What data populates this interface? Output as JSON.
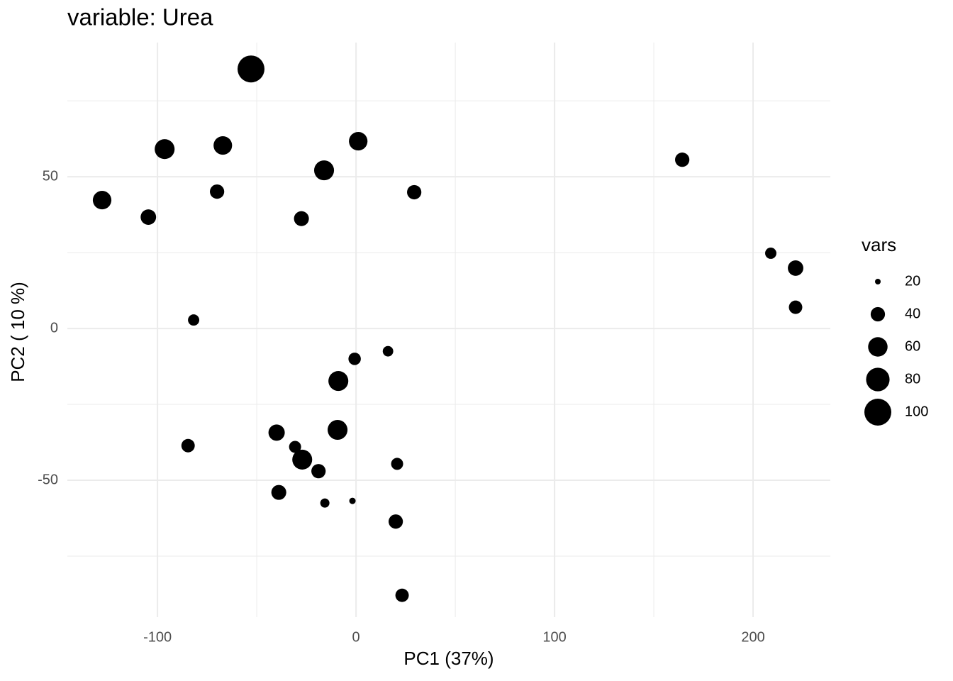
{
  "chart_data": {
    "type": "scatter",
    "title": "variable: Urea",
    "x_label": "PC1 (37%)",
    "y_label": "PC2 ( 10 %)",
    "size_label": "vars",
    "color": "#000000",
    "grid": true,
    "legend_position": "right",
    "xlim": [
      -145.4,
      238.9
    ],
    "ylim": [
      -95.1,
      94.2
    ],
    "xticks": [
      -100,
      0,
      100,
      200
    ],
    "yticks": [
      -50,
      0,
      50
    ],
    "xminor_ticks": [
      -50,
      50,
      150
    ],
    "yminor_ticks": [
      -75,
      -25,
      25,
      75
    ],
    "size_ticks": [
      20,
      40,
      60,
      80,
      100
    ],
    "x": [
      -52.9,
      -96.4,
      -67.1,
      1.1,
      -16.1,
      -127.9,
      -104.6,
      -70,
      -27.5,
      29.3,
      164.3,
      208.9,
      221.4,
      221.4,
      -81.8,
      -0.7,
      16.1,
      -8.9,
      -9.3,
      -40,
      -84.6,
      -30.7,
      -27.1,
      -18.9,
      20.7,
      -38.9,
      -15.7,
      -1.8,
      20,
      23.2
    ],
    "y": [
      85.5,
      59.1,
      60.3,
      61.7,
      52.1,
      42.3,
      36.7,
      45.1,
      36.2,
      44.9,
      55.6,
      24.8,
      19.9,
      7.0,
      2.8,
      -10.0,
      -7.5,
      -17.3,
      -33.4,
      -34.3,
      -38.6,
      -39.0,
      -43.2,
      -47.0,
      -44.6,
      -54.0,
      -57.5,
      -56.8,
      -63.6,
      -87.9
    ],
    "size": [
      100,
      62,
      56,
      56,
      62,
      56,
      44,
      40,
      42,
      40,
      40,
      31,
      44,
      37,
      31,
      34,
      29,
      62,
      62,
      47,
      37,
      33,
      62,
      40,
      33,
      42,
      26,
      21,
      40,
      37
    ]
  }
}
